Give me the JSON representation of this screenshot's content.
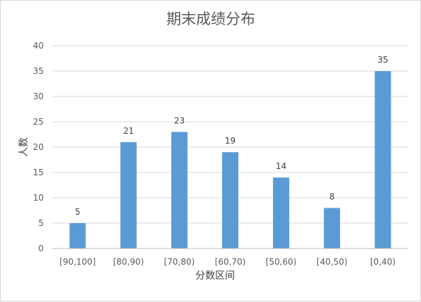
{
  "chart_data": {
    "type": "bar",
    "title": "期末成绩分布",
    "xlabel": "分数区间",
    "ylabel": "人数",
    "categories": [
      "[90,100]",
      "[80,90)",
      "[70,80)",
      "[60,70)",
      "[50,60)",
      "[40,50)",
      "[0,40)"
    ],
    "values": [
      5,
      21,
      23,
      19,
      14,
      8,
      35
    ],
    "ylim": [
      0,
      40
    ],
    "yticks": [
      0,
      5,
      10,
      15,
      20,
      25,
      30,
      35,
      40
    ],
    "grid": true,
    "legend": "none",
    "bar_color": "#5b9bd5"
  }
}
